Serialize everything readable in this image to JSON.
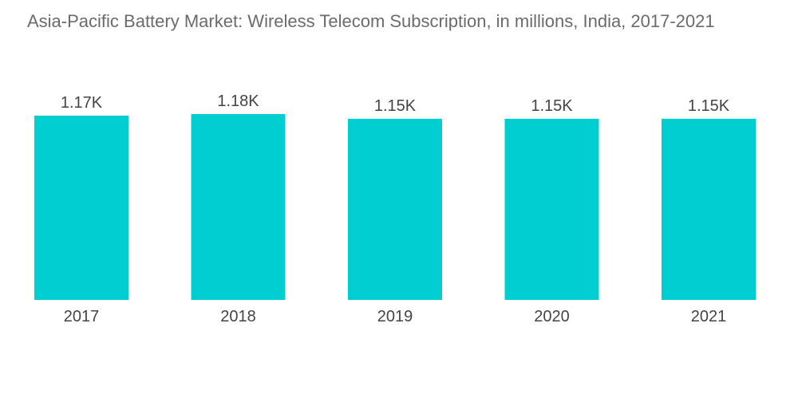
{
  "chart_data": {
    "type": "bar",
    "title": "Asia-Pacific Battery Market: Wireless Telecom Subscription, in millions, India, 2017-2021",
    "categories": [
      "2017",
      "2018",
      "2019",
      "2020",
      "2021"
    ],
    "values": [
      1170,
      1180,
      1150,
      1150,
      1150
    ],
    "data_labels": [
      "1.17K",
      "1.18K",
      "1.15K",
      "1.15K",
      "1.15K"
    ],
    "xlabel": "",
    "ylabel": "",
    "ylim": [
      0,
      1180
    ],
    "grid": false,
    "legend": "none",
    "bar_color": "#00ced1"
  }
}
